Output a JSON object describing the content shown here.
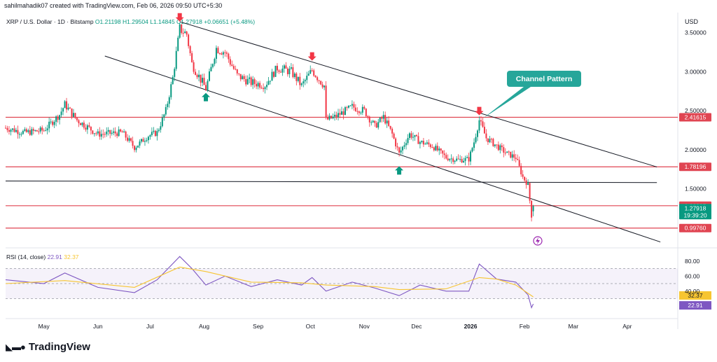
{
  "header": {
    "text": "sahilmahadik07 created with TradingView.com, Feb 06, 2026 09:50 UTC+5:30"
  },
  "symbol": {
    "name": "XRP / U.S. Dollar · 1D · Bitstamp",
    "ohlc": "O1.21198  H1.29504  L1.14845  C1.27918  +0.06651 (+5.48%)"
  },
  "currency": "USD",
  "annotation": {
    "label": "Channel Pattern"
  },
  "rsi": {
    "label": "RSI (14, close)",
    "value": "22.91",
    "ma": "32.37"
  },
  "logo": {
    "text": "TradingView"
  },
  "colors": {
    "up": "#089981",
    "down": "#f23645",
    "level": "#e04552",
    "rsi": "#7e57c2",
    "rsi_ma": "#f7c531",
    "callout": "#26a69a"
  },
  "chart_data": [
    {
      "type": "candlestick",
      "title": "XRP / U.S. Dollar · 1D · Bitstamp",
      "ylabel": "USD",
      "ylim": [
        0.78,
        3.72
      ],
      "y_ticks": [
        "3.50000",
        "3.00000",
        "2.50000",
        "2.00000",
        "1.50000"
      ],
      "x_ticks": [
        "May",
        "Jun",
        "Jul",
        "Aug",
        "Sep",
        "Oct",
        "Nov",
        "Dec",
        "2026",
        "Feb",
        "Mar",
        "Apr"
      ],
      "x_tick_dates": [
        "2025-05-01",
        "2025-06-01",
        "2025-07-01",
        "2025-08-01",
        "2025-09-01",
        "2025-10-01",
        "2025-11-01",
        "2025-12-01",
        "2026-01-01",
        "2026-02-01",
        "2026-03-01",
        "2026-04-01"
      ],
      "xlim": [
        "2025-04-09",
        "2026-04-30"
      ],
      "price_path": [
        [
          "2025-04-09",
          2.28
        ],
        [
          "2025-04-20",
          2.22
        ],
        [
          "2025-05-01",
          2.25
        ],
        [
          "2025-05-10",
          2.45
        ],
        [
          "2025-05-13",
          2.58
        ],
        [
          "2025-05-20",
          2.38
        ],
        [
          "2025-06-01",
          2.2
        ],
        [
          "2025-06-15",
          2.22
        ],
        [
          "2025-06-22",
          2.03
        ],
        [
          "2025-06-30",
          2.18
        ],
        [
          "2025-07-05",
          2.22
        ],
        [
          "2025-07-10",
          2.5
        ],
        [
          "2025-07-14",
          2.92
        ],
        [
          "2025-07-18",
          3.55
        ],
        [
          "2025-07-22",
          3.48
        ],
        [
          "2025-07-25",
          3.1
        ],
        [
          "2025-08-02",
          2.78
        ],
        [
          "2025-08-08",
          3.3
        ],
        [
          "2025-08-13",
          3.25
        ],
        [
          "2025-08-20",
          2.95
        ],
        [
          "2025-08-28",
          2.86
        ],
        [
          "2025-09-05",
          2.83
        ],
        [
          "2025-09-12",
          3.05
        ],
        [
          "2025-09-20",
          3.0
        ],
        [
          "2025-09-26",
          2.82
        ],
        [
          "2025-10-02",
          3.02
        ],
        [
          "2025-10-06",
          2.9
        ],
        [
          "2025-10-09",
          2.82
        ],
        [
          "2025-10-10",
          2.38
        ],
        [
          "2025-10-15",
          2.42
        ],
        [
          "2025-10-25",
          2.55
        ],
        [
          "2025-11-01",
          2.5
        ],
        [
          "2025-11-07",
          2.3
        ],
        [
          "2025-11-12",
          2.42
        ],
        [
          "2025-11-17",
          2.2
        ],
        [
          "2025-11-21",
          1.95
        ],
        [
          "2025-11-27",
          2.2
        ],
        [
          "2025-12-03",
          2.1
        ],
        [
          "2025-12-10",
          2.05
        ],
        [
          "2025-12-18",
          1.9
        ],
        [
          "2025-12-25",
          1.87
        ],
        [
          "2025-12-31",
          1.88
        ],
        [
          "2026-01-03",
          2.1
        ],
        [
          "2026-01-06",
          2.38
        ],
        [
          "2026-01-10",
          2.15
        ],
        [
          "2026-01-16",
          2.05
        ],
        [
          "2026-01-22",
          1.95
        ],
        [
          "2026-01-27",
          1.9
        ],
        [
          "2026-01-31",
          1.65
        ],
        [
          "2026-02-03",
          1.55
        ],
        [
          "2026-02-05",
          1.15
        ],
        [
          "2026-02-06",
          1.27918
        ]
      ],
      "horizontal_levels": [
        {
          "label": "2.41615",
          "value": 2.41615
        },
        {
          "label": "1.78196",
          "value": 1.78196
        },
        {
          "label": "1.28385",
          "value": 1.28385
        },
        {
          "label": "0.99760",
          "value": 0.9976
        }
      ],
      "neckline": {
        "from": [
          "2025-04-09",
          1.6
        ],
        "to": [
          "2026-04-18",
          1.58
        ]
      },
      "channel_upper": {
        "from": [
          "2025-07-18",
          3.64
        ],
        "to": [
          "2026-04-18",
          1.78
        ]
      },
      "channel_lower": {
        "from": [
          "2025-06-05",
          3.2
        ],
        "to": [
          "2026-04-20",
          0.82
        ]
      },
      "markers": [
        {
          "type": "down-arrow",
          "date": "2025-07-18",
          "price": 3.65
        },
        {
          "type": "up-arrow",
          "date": "2025-08-02",
          "price": 2.72
        },
        {
          "type": "down-arrow",
          "date": "2025-10-02",
          "price": 3.15
        },
        {
          "type": "up-arrow",
          "date": "2025-11-21",
          "price": 1.78
        },
        {
          "type": "down-arrow",
          "date": "2026-01-06",
          "price": 2.45
        }
      ],
      "last_price": {
        "value": "1.27918",
        "countdown": "19:39:20"
      }
    },
    {
      "type": "line",
      "title": "RSI (14, close)",
      "ylim": [
        10,
        90
      ],
      "y_ticks": [
        "80.00",
        "60.00",
        "40.00"
      ],
      "band": [
        30,
        70
      ],
      "series": [
        {
          "name": "RSI",
          "x": [
            "2025-04-09",
            "2025-05-01",
            "2025-05-13",
            "2025-06-01",
            "2025-06-22",
            "2025-07-05",
            "2025-07-18",
            "2025-07-25",
            "2025-08-02",
            "2025-08-13",
            "2025-08-28",
            "2025-09-12",
            "2025-09-26",
            "2025-10-02",
            "2025-10-10",
            "2025-10-25",
            "2025-11-07",
            "2025-11-21",
            "2025-12-03",
            "2025-12-18",
            "2025-12-31",
            "2026-01-06",
            "2026-01-16",
            "2026-01-27",
            "2026-02-03",
            "2026-02-05",
            "2026-02-06"
          ],
          "values": [
            55,
            50,
            64,
            45,
            38,
            55,
            86,
            70,
            48,
            60,
            46,
            55,
            48,
            58,
            40,
            52,
            44,
            34,
            48,
            40,
            40,
            76,
            56,
            52,
            35,
            18,
            22.91
          ]
        },
        {
          "name": "RSI-based MA",
          "x": [
            "2025-04-09",
            "2025-05-13",
            "2025-06-22",
            "2025-07-18",
            "2025-08-02",
            "2025-08-28",
            "2025-09-26",
            "2025-10-10",
            "2025-11-07",
            "2025-11-21",
            "2025-12-18",
            "2026-01-06",
            "2026-01-16",
            "2026-01-27",
            "2026-02-06"
          ],
          "values": [
            50,
            54,
            45,
            72,
            66,
            52,
            51,
            48,
            46,
            42,
            43,
            58,
            56,
            48,
            32.37
          ]
        }
      ]
    }
  ]
}
